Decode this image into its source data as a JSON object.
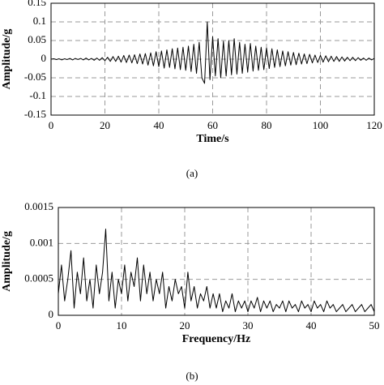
{
  "chart_data": [
    {
      "type": "line",
      "x_label": "Time/s",
      "y_label": "Amplitude/g",
      "caption": "(a)",
      "color": "#000000",
      "grid": true,
      "xlim": [
        0,
        120
      ],
      "xticks": [
        0,
        20,
        40,
        60,
        80,
        100,
        120
      ],
      "ylim": [
        -0.15,
        0.15
      ],
      "yticks": [
        -0.15,
        -0.1,
        -0.05,
        0,
        0.05,
        0.1,
        0.15
      ],
      "x": [
        0,
        1,
        2,
        3,
        4,
        5,
        6,
        7,
        8,
        9,
        10,
        11,
        12,
        13,
        14,
        15,
        16,
        17,
        18,
        19,
        20,
        21,
        22,
        23,
        24,
        25,
        26,
        27,
        28,
        29,
        30,
        31,
        32,
        33,
        34,
        35,
        36,
        37,
        38,
        39,
        40,
        41,
        42,
        43,
        44,
        45,
        46,
        47,
        48,
        49,
        50,
        51,
        52,
        53,
        54,
        55,
        56,
        57,
        58,
        59,
        60,
        61,
        62,
        63,
        64,
        65,
        66,
        67,
        68,
        69,
        70,
        71,
        72,
        73,
        74,
        75,
        76,
        77,
        78,
        79,
        80,
        81,
        82,
        83,
        84,
        85,
        86,
        87,
        88,
        89,
        90,
        91,
        92,
        93,
        94,
        95,
        96,
        97,
        98,
        99,
        100,
        101,
        102,
        103,
        104,
        105,
        106,
        107,
        108,
        109,
        110,
        111,
        112,
        113,
        114,
        115,
        116,
        117,
        118,
        119,
        120
      ],
      "values": [
        0,
        0.001,
        -0.001,
        0.001,
        -0.002,
        0.001,
        -0.001,
        0.002,
        -0.002,
        0.002,
        -0.001,
        0.002,
        -0.002,
        0.003,
        -0.002,
        0.002,
        -0.003,
        0.003,
        -0.003,
        0.004,
        -0.004,
        0.005,
        -0.006,
        0.007,
        -0.006,
        0.008,
        -0.008,
        0.01,
        -0.009,
        0.011,
        -0.01,
        0.012,
        -0.012,
        0.014,
        -0.013,
        0.015,
        -0.016,
        0.017,
        -0.018,
        0.02,
        -0.02,
        0.022,
        -0.024,
        0.025,
        -0.022,
        0.028,
        -0.026,
        0.03,
        -0.028,
        0.032,
        -0.03,
        0.035,
        -0.033,
        0.04,
        -0.038,
        0.045,
        -0.05,
        -0.065,
        0.1,
        -0.055,
        0.06,
        -0.045,
        0.055,
        -0.05,
        0.048,
        -0.045,
        0.05,
        -0.042,
        0.055,
        -0.04,
        0.045,
        -0.038,
        0.04,
        -0.035,
        0.042,
        -0.032,
        0.035,
        -0.03,
        0.032,
        -0.028,
        0.03,
        -0.025,
        0.028,
        -0.022,
        0.025,
        -0.02,
        0.022,
        -0.018,
        0.02,
        -0.016,
        0.018,
        -0.015,
        0.016,
        -0.013,
        0.014,
        -0.012,
        0.013,
        -0.01,
        0.011,
        -0.009,
        0.01,
        -0.008,
        0.009,
        -0.007,
        0.008,
        -0.006,
        0.007,
        -0.006,
        0.006,
        -0.005,
        0.005,
        -0.004,
        0.005,
        -0.004,
        0.004,
        -0.003,
        0.003,
        -0.003,
        0.003,
        -0.002,
        0.002
      ]
    },
    {
      "type": "line",
      "x_label": "Frequency/Hz",
      "y_label": "Amplitude/g",
      "caption": "(b)",
      "color": "#000000",
      "grid": true,
      "xlim": [
        0,
        50
      ],
      "xticks": [
        0,
        10,
        20,
        30,
        40,
        50
      ],
      "ylim": [
        0,
        0.0015
      ],
      "yticks": [
        0,
        0.0005,
        0.001,
        0.0015
      ],
      "x": [
        0,
        0.5,
        1,
        1.5,
        2,
        2.5,
        3,
        3.5,
        4,
        4.5,
        5,
        5.5,
        6,
        6.5,
        7,
        7.5,
        8,
        8.5,
        9,
        9.5,
        10,
        10.5,
        11,
        11.5,
        12,
        12.5,
        13,
        13.5,
        14,
        14.5,
        15,
        15.5,
        16,
        16.5,
        17,
        17.5,
        18,
        18.5,
        19,
        19.5,
        20,
        20.5,
        21,
        21.5,
        22,
        22.5,
        23,
        23.5,
        24,
        24.5,
        25,
        25.5,
        26,
        26.5,
        27,
        27.5,
        28,
        28.5,
        29,
        29.5,
        30,
        30.5,
        31,
        31.5,
        32,
        32.5,
        33,
        33.5,
        34,
        34.5,
        35,
        35.5,
        36,
        36.5,
        37,
        37.5,
        38,
        38.5,
        39,
        39.5,
        40,
        40.5,
        41,
        41.5,
        42,
        42.5,
        43,
        43.5,
        44,
        44.5,
        45,
        45.5,
        46,
        46.5,
        47,
        47.5,
        48,
        48.5,
        49,
        49.5,
        50
      ],
      "values": [
        0.0003,
        0.0007,
        0.0002,
        0.0005,
        0.0009,
        0.0001,
        0.0006,
        0.0003,
        0.0008,
        0.0002,
        0.0005,
        0.0001,
        0.0007,
        0.0003,
        0.0006,
        0.0012,
        0.0002,
        0.0006,
        0.0001,
        0.0005,
        0.0003,
        0.0007,
        0.0002,
        0.0006,
        0.0004,
        0.0008,
        0.0002,
        0.0007,
        0.0003,
        0.0006,
        0.0002,
        0.0005,
        0.0003,
        0.0006,
        0.0001,
        0.0004,
        0.0002,
        0.0005,
        0.0003,
        0.0004,
        0.0001,
        0.0006,
        0.0002,
        0.0004,
        0.0001,
        0.0003,
        0.0002,
        0.0004,
        0.0001,
        0.0003,
        0.0001,
        0.0003,
        5e-05,
        0.0002,
        0.0001,
        0.0003,
        5e-05,
        0.0002,
        0.0001,
        0.0002,
        5e-05,
        0.0002,
        0.0001,
        0.00025,
        5e-05,
        0.0002,
        0.0001,
        0.0002,
        5e-05,
        0.00015,
        0.0001,
        0.0002,
        5e-05,
        0.0002,
        0.0001,
        0.00015,
        5e-05,
        0.0002,
        0.0001,
        0.00015,
        5e-05,
        0.0002,
        0.0001,
        0.00015,
        5e-05,
        0.0002,
        0.0001,
        0.00015,
        5e-05,
        0.0001,
        0.00015,
        5e-05,
        0.0001,
        0.00015,
        5e-05,
        0.0001,
        0.00015,
        5e-05,
        0.0001,
        0.00015,
        5e-05
      ]
    }
  ]
}
